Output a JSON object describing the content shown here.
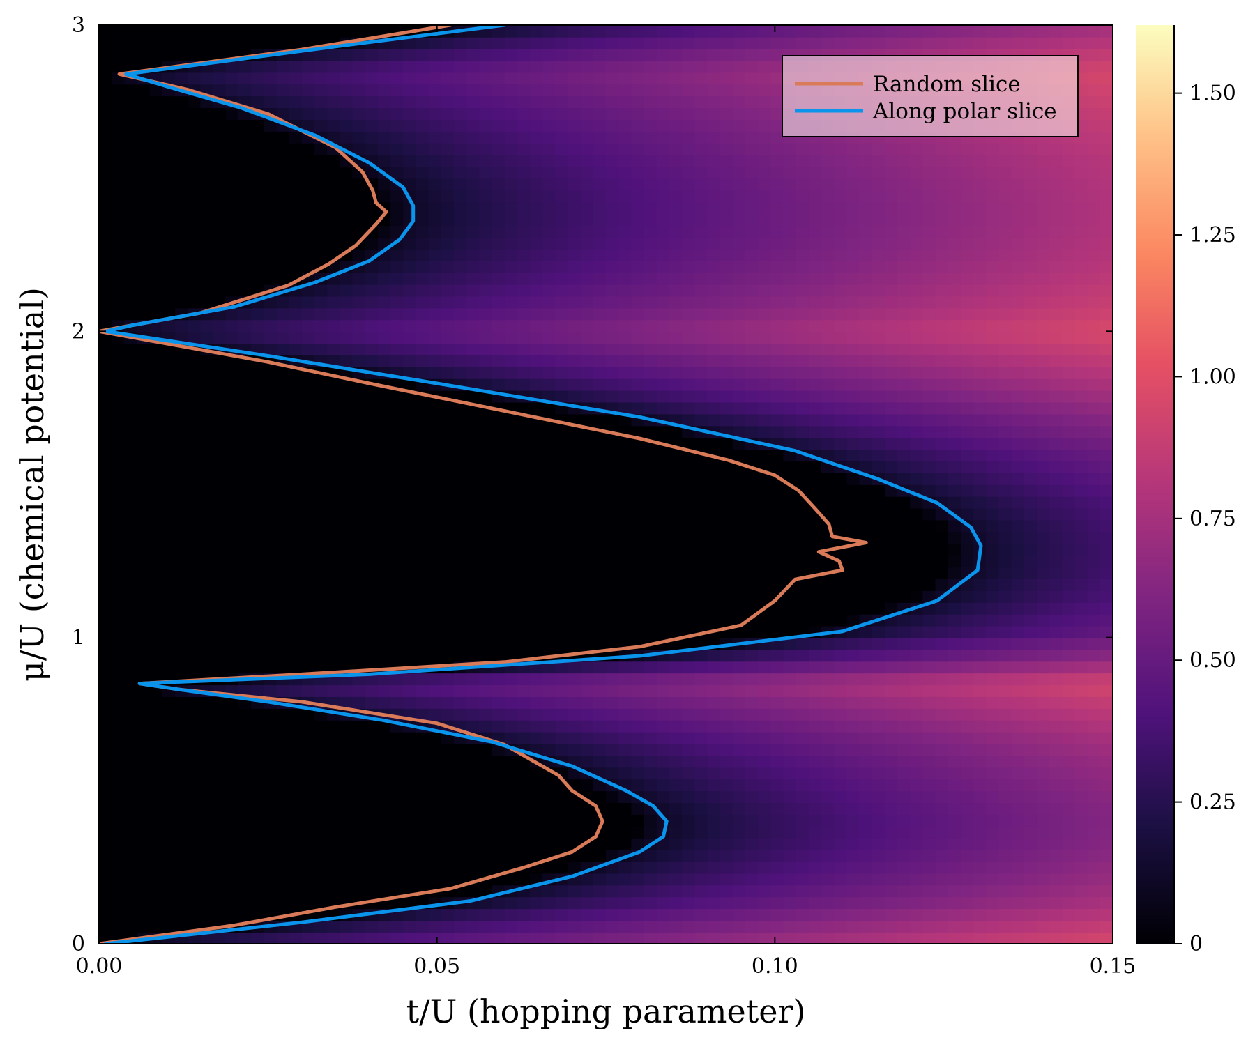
{
  "chart_data": {
    "type": "heatmap",
    "xlabel": "t/U (hopping parameter)",
    "ylabel": "μ/U (chemical potential)",
    "xlim": [
      0.0,
      0.15
    ],
    "ylim": [
      0,
      3
    ],
    "x_ticks": [
      "0.00",
      "0.05",
      "0.10",
      "0.15"
    ],
    "x_tick_values": [
      0.0,
      0.05,
      0.1,
      0.15
    ],
    "y_ticks": [
      "0",
      "1",
      "2",
      "3"
    ],
    "y_tick_values": [
      0,
      1,
      2,
      3
    ],
    "colormap": "magma",
    "colorbar": {
      "range": [
        0,
        1.62
      ],
      "ticks": [
        "0",
        "0.25",
        "0.50",
        "0.75",
        "1.00",
        "1.25",
        "1.50"
      ],
      "tick_values": [
        0,
        0.25,
        0.5,
        0.75,
        1.0,
        1.25,
        1.5
      ]
    },
    "grid": false,
    "legend_position": "top-right",
    "series": [
      {
        "name": "Random slice",
        "color": "#d97a58",
        "points": [
          [
            0.0,
            0.0
          ],
          [
            0.02,
            0.06
          ],
          [
            0.035,
            0.12
          ],
          [
            0.052,
            0.18
          ],
          [
            0.063,
            0.25
          ],
          [
            0.07,
            0.3
          ],
          [
            0.0735,
            0.35
          ],
          [
            0.0745,
            0.4
          ],
          [
            0.0735,
            0.45
          ],
          [
            0.07,
            0.5
          ],
          [
            0.068,
            0.55
          ],
          [
            0.06,
            0.65
          ],
          [
            0.05,
            0.72
          ],
          [
            0.03,
            0.79
          ],
          [
            0.012,
            0.83
          ],
          [
            0.006,
            0.85
          ],
          [
            0.03,
            0.88
          ],
          [
            0.06,
            0.92
          ],
          [
            0.08,
            0.97
          ],
          [
            0.095,
            1.04
          ],
          [
            0.1,
            1.12
          ],
          [
            0.103,
            1.19
          ],
          [
            0.11,
            1.22
          ],
          [
            0.1095,
            1.25
          ],
          [
            0.1065,
            1.28
          ],
          [
            0.1135,
            1.31
          ],
          [
            0.1085,
            1.33
          ],
          [
            0.108,
            1.37
          ],
          [
            0.106,
            1.42
          ],
          [
            0.1035,
            1.48
          ],
          [
            0.1,
            1.53
          ],
          [
            0.093,
            1.58
          ],
          [
            0.08,
            1.65
          ],
          [
            0.06,
            1.74
          ],
          [
            0.04,
            1.83
          ],
          [
            0.025,
            1.9
          ],
          [
            0.0,
            2.0
          ],
          [
            0.005,
            2.02
          ],
          [
            0.015,
            2.06
          ],
          [
            0.028,
            2.15
          ],
          [
            0.034,
            2.22
          ],
          [
            0.038,
            2.28
          ],
          [
            0.041,
            2.35
          ],
          [
            0.0425,
            2.39
          ],
          [
            0.041,
            2.42
          ],
          [
            0.0405,
            2.46
          ],
          [
            0.039,
            2.52
          ],
          [
            0.035,
            2.6
          ],
          [
            0.025,
            2.71
          ],
          [
            0.013,
            2.79
          ],
          [
            0.003,
            2.84
          ],
          [
            0.03,
            2.92
          ],
          [
            0.052,
            3.0
          ]
        ]
      },
      {
        "name": "Along polar slice",
        "color": "#0a94ec",
        "points": [
          [
            0.001,
            0.0
          ],
          [
            0.03,
            0.07
          ],
          [
            0.055,
            0.14
          ],
          [
            0.07,
            0.22
          ],
          [
            0.08,
            0.3
          ],
          [
            0.0835,
            0.35
          ],
          [
            0.084,
            0.4
          ],
          [
            0.082,
            0.45
          ],
          [
            0.078,
            0.5
          ],
          [
            0.07,
            0.58
          ],
          [
            0.058,
            0.66
          ],
          [
            0.042,
            0.73
          ],
          [
            0.025,
            0.79
          ],
          [
            0.012,
            0.83
          ],
          [
            0.006,
            0.85
          ],
          [
            0.04,
            0.88
          ],
          [
            0.08,
            0.94
          ],
          [
            0.11,
            1.02
          ],
          [
            0.124,
            1.12
          ],
          [
            0.13,
            1.22
          ],
          [
            0.1305,
            1.3
          ],
          [
            0.129,
            1.36
          ],
          [
            0.124,
            1.44
          ],
          [
            0.115,
            1.52
          ],
          [
            0.103,
            1.61
          ],
          [
            0.08,
            1.72
          ],
          [
            0.05,
            1.83
          ],
          [
            0.025,
            1.92
          ],
          [
            0.001,
            2.0
          ],
          [
            0.005,
            2.02
          ],
          [
            0.02,
            2.08
          ],
          [
            0.032,
            2.16
          ],
          [
            0.04,
            2.23
          ],
          [
            0.0445,
            2.3
          ],
          [
            0.0465,
            2.36
          ],
          [
            0.0465,
            2.41
          ],
          [
            0.045,
            2.47
          ],
          [
            0.04,
            2.55
          ],
          [
            0.032,
            2.64
          ],
          [
            0.021,
            2.73
          ],
          [
            0.01,
            2.8
          ],
          [
            0.004,
            2.84
          ],
          [
            0.035,
            2.93
          ],
          [
            0.06,
            3.0
          ]
        ]
      }
    ]
  }
}
